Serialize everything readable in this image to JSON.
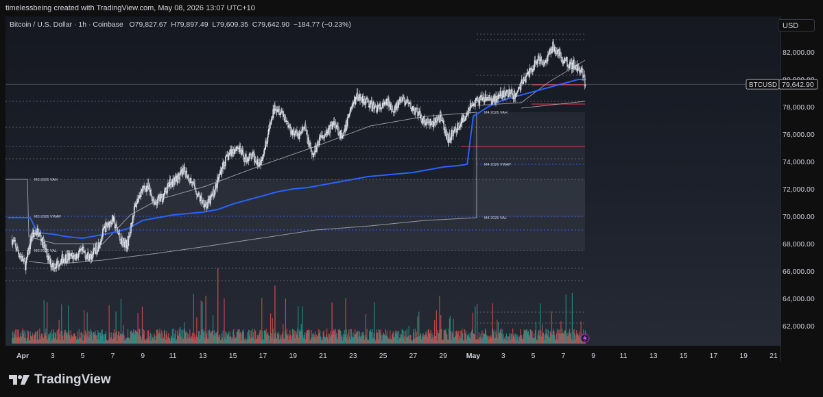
{
  "header": {
    "attribution": "timelessbeing created with TradingView.com, May 08, 2026 13:07 UTC+10"
  },
  "legend": {
    "symbol": "Bitcoin / U.S. Dollar · 1h · Coinbase",
    "open": "O79,827.67",
    "high": "H79,897.49",
    "low": "L79,609.35",
    "close": "C79,642.90",
    "change": "−184.77 (−0.23%)"
  },
  "currency_button": "USD",
  "price_tag": {
    "symbol": "BTCUSD",
    "price": "79,642.90"
  },
  "footer": {
    "logo_text": "TradingView"
  },
  "colors": {
    "vwap": "#2962ff",
    "band": "#b2b5be",
    "red_line": "#f23645",
    "volume_up": "#26a69a",
    "volume_down": "#ef5350"
  },
  "chart_data": {
    "type": "candlestick",
    "symbol": "BTCUSD",
    "timeframe": "1h",
    "ylim": [
      60500,
      84000
    ],
    "y_ticks": [
      "82,000.00",
      "80,000.00",
      "78,000.00",
      "76,000.00",
      "74,000.00",
      "72,000.00",
      "70,000.00",
      "68,000.00",
      "66,000.00",
      "64,000.00",
      "62,000.00"
    ],
    "y_tick_values": [
      82000,
      80000,
      78000,
      76000,
      74000,
      72000,
      70000,
      68000,
      66000,
      64000,
      62000
    ],
    "x_ticks": [
      "Apr",
      "3",
      "5",
      "7",
      "9",
      "11",
      "13",
      "15",
      "17",
      "19",
      "21",
      "23",
      "25",
      "27",
      "29",
      "May",
      "3",
      "5",
      "7",
      "9",
      "11",
      "13",
      "15",
      "17",
      "19",
      "21"
    ],
    "x_tick_days": [
      1,
      3,
      5,
      7,
      9,
      11,
      13,
      15,
      17,
      19,
      21,
      23,
      25,
      27,
      29,
      31,
      33,
      35,
      37,
      39,
      41,
      43,
      45,
      47,
      49,
      51
    ],
    "price_path": {
      "days": [
        0.3,
        0.8,
        1.2,
        1.6,
        2.0,
        2.4,
        2.8,
        3.2,
        3.6,
        4.0,
        4.5,
        5.0,
        5.5,
        6.0,
        6.5,
        7.0,
        7.5,
        8.0,
        8.4,
        8.8,
        9.3,
        9.8,
        10.3,
        10.8,
        11.3,
        11.8,
        12.3,
        12.8,
        13.3,
        13.8,
        14.3,
        14.8,
        15.3,
        15.8,
        16.3,
        16.8,
        17.3,
        17.8,
        18.3,
        18.8,
        19.3,
        19.8,
        20.3,
        20.8,
        21.3,
        21.8,
        22.3,
        22.8,
        23.3,
        23.8,
        24.3,
        24.8,
        25.3,
        25.8,
        26.3,
        26.8,
        27.3,
        27.8,
        28.3,
        28.8,
        29.3,
        29.8,
        30.3,
        30.8,
        31.3,
        31.8,
        32.3,
        32.8,
        33.3,
        33.8,
        34.3,
        34.8,
        35.3,
        35.8,
        36.3,
        36.8,
        37.3,
        37.8,
        38.2,
        38.5
      ],
      "closes": [
        68300,
        67200,
        66400,
        68600,
        68900,
        68000,
        66600,
        66400,
        66900,
        67000,
        67100,
        67400,
        67000,
        67800,
        69200,
        69800,
        68300,
        67900,
        70400,
        71700,
        72200,
        71000,
        71400,
        72400,
        72800,
        73300,
        72400,
        71300,
        70800,
        71900,
        73700,
        74600,
        75100,
        74200,
        74400,
        73900,
        75800,
        78100,
        77600,
        76400,
        75900,
        76400,
        74300,
        75800,
        76200,
        76900,
        75600,
        77800,
        78800,
        78500,
        78000,
        77900,
        78300,
        77800,
        78600,
        78000,
        77500,
        76900,
        76700,
        77300,
        75600,
        76300,
        77000,
        78100,
        78400,
        78600,
        78500,
        78800,
        79000,
        78800,
        79900,
        80600,
        81500,
        81300,
        82500,
        81700,
        81200,
        81000,
        80600,
        79643
      ]
    },
    "m3_profile": {
      "label_vah": "M3 2026 VAH",
      "vah": 72700,
      "label_vwap": "M3 2026 VWAP",
      "vwap": 70000,
      "label_val": "M3 2026 VAL",
      "val": 67500
    },
    "m4_profile": {
      "label_vah": "M4 2026 VAH",
      "vah": 77600,
      "label_vwap": "M4 2026 VWAP",
      "vwap": 73800,
      "label_val": "M4 2026 VAL",
      "val": 69900
    },
    "levels": [
      83300,
      82900,
      80300,
      79600,
      78400,
      76500,
      75100,
      74200,
      72700,
      70000,
      69000,
      67500,
      66200,
      65300,
      63000,
      62200
    ],
    "vwap": {
      "days": [
        0,
        0.5,
        1.0,
        1.5,
        2.0,
        3.0,
        4.0,
        5.0,
        6.0,
        7.0,
        8.0,
        9.0,
        10.0,
        11.0,
        12.0,
        13.0,
        14.0,
        15.0,
        16.0,
        17.0,
        18.0,
        19.0,
        20.0,
        21.0,
        22.0,
        23.0,
        24.0,
        25.0,
        26.0,
        27.0,
        28.0,
        29.0,
        30.0,
        30.6,
        31.0,
        32.0,
        33.0,
        34.0,
        35.0,
        36.0,
        37.0,
        38.0,
        38.5
      ],
      "values": [
        69900,
        69900,
        69900,
        69900,
        68800,
        68700,
        68500,
        68400,
        68600,
        68800,
        69100,
        69700,
        69900,
        70100,
        70200,
        70300,
        70500,
        70900,
        71200,
        71500,
        71800,
        72000,
        72100,
        72300,
        72500,
        72700,
        72900,
        73000,
        73100,
        73200,
        73400,
        73600,
        73700,
        73800,
        77300,
        78000,
        78500,
        78800,
        79100,
        79400,
        79700,
        80000,
        80000
      ]
    },
    "volume_note": "Hourly volume histogram, colored by candle direction"
  }
}
